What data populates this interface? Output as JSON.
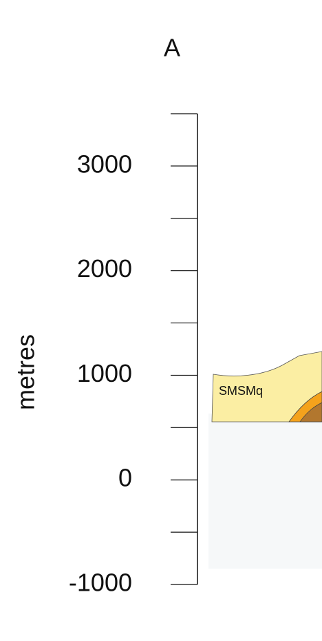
{
  "section_label": "A",
  "axis": {
    "label": "metres",
    "ylim": [
      -1000,
      3500
    ],
    "ticks": [
      -1000,
      0,
      1000,
      2000,
      3000
    ],
    "minor_ticks": [
      -500,
      500,
      1500,
      2500,
      3500
    ]
  },
  "units": [
    {
      "label": "SMSMq"
    }
  ]
}
